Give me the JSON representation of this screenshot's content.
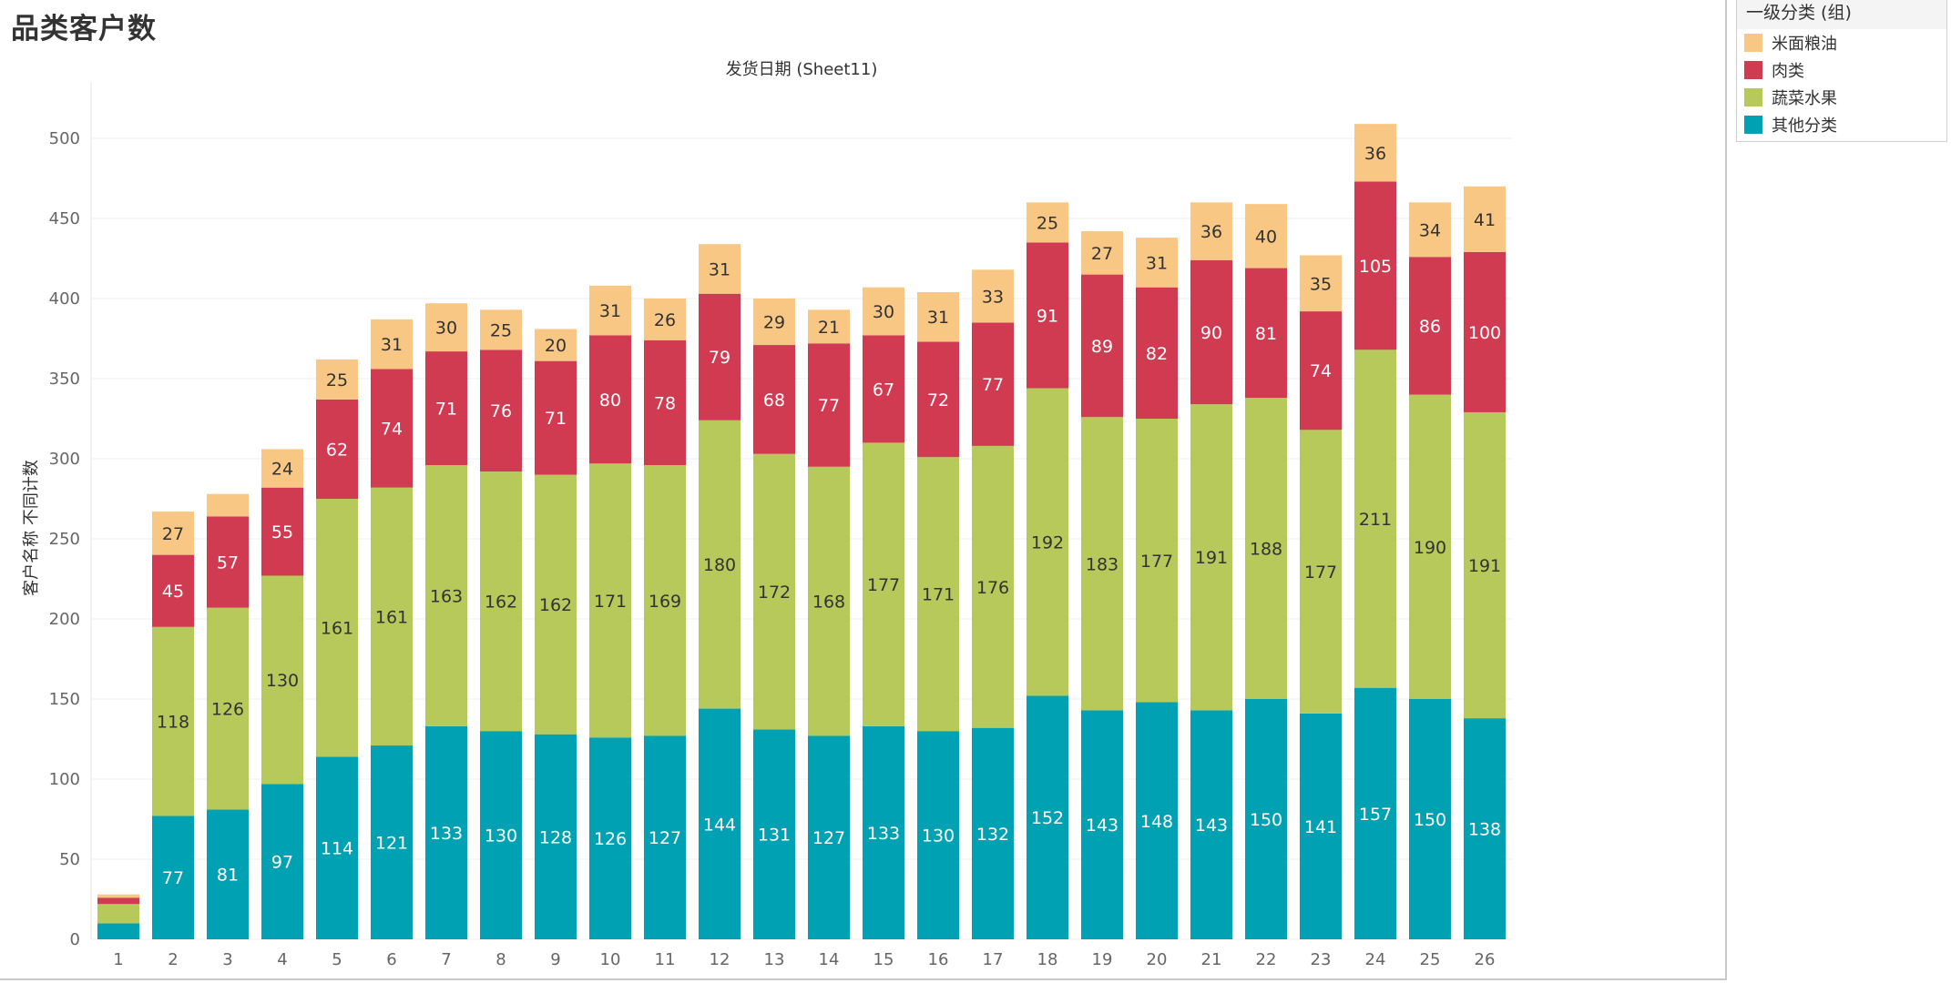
{
  "page": {
    "title": "品类客户数"
  },
  "legend": {
    "title": "一级分类 (组)",
    "items": [
      {
        "label": "米面粮油",
        "color": "#F8C784"
      },
      {
        "label": "肉类",
        "color": "#D13B52"
      },
      {
        "label": "蔬菜水果",
        "color": "#B8C95C"
      },
      {
        "label": "其他分类",
        "color": "#00A1B3"
      }
    ]
  },
  "chart_data": {
    "type": "bar",
    "stacked": true,
    "title": "发货日期 (Sheet11)",
    "xlabel": "",
    "ylabel": "客户名称 不同计数",
    "ylim": [
      0,
      520
    ],
    "yticks": [
      0,
      50,
      100,
      150,
      200,
      250,
      300,
      350,
      400,
      450,
      500
    ],
    "categories": [
      "1",
      "2",
      "3",
      "4",
      "5",
      "6",
      "7",
      "8",
      "9",
      "10",
      "11",
      "12",
      "13",
      "14",
      "15",
      "16",
      "17",
      "18",
      "19",
      "20",
      "21",
      "22",
      "23",
      "24",
      "25",
      "26"
    ],
    "series": [
      {
        "name": "其他分类",
        "color": "#00A1B3",
        "label_color": "#ffffff",
        "values": [
          10,
          77,
          81,
          97,
          114,
          121,
          133,
          130,
          128,
          126,
          127,
          144,
          131,
          127,
          133,
          130,
          132,
          152,
          143,
          148,
          143,
          150,
          141,
          157,
          150,
          138
        ],
        "labels": [
          "",
          "77",
          "81",
          "97",
          "114",
          "121",
          "133",
          "130",
          "128",
          "126",
          "127",
          "144",
          "131",
          "127",
          "133",
          "130",
          "132",
          "152",
          "143",
          "148",
          "143",
          "150",
          "141",
          "157",
          "150",
          "138"
        ]
      },
      {
        "name": "蔬菜水果",
        "color": "#B8C95C",
        "label_color": "#333333",
        "values": [
          12,
          118,
          126,
          130,
          161,
          161,
          163,
          162,
          162,
          171,
          169,
          180,
          172,
          168,
          177,
          171,
          176,
          192,
          183,
          177,
          191,
          188,
          177,
          211,
          190,
          191
        ],
        "labels": [
          "",
          "118",
          "126",
          "130",
          "161",
          "161",
          "163",
          "162",
          "162",
          "171",
          "169",
          "180",
          "172",
          "168",
          "177",
          "171",
          "176",
          "192",
          "183",
          "177",
          "191",
          "188",
          "177",
          "211",
          "190",
          "191"
        ]
      },
      {
        "name": "肉类",
        "color": "#D13B52",
        "label_color": "#ffffff",
        "values": [
          4,
          45,
          57,
          55,
          62,
          74,
          71,
          76,
          71,
          80,
          78,
          79,
          68,
          77,
          67,
          72,
          77,
          91,
          89,
          82,
          90,
          81,
          74,
          105,
          86,
          100
        ],
        "labels": [
          "",
          "45",
          "57",
          "55",
          "62",
          "74",
          "71",
          "76",
          "71",
          "80",
          "78",
          "79",
          "68",
          "77",
          "67",
          "72",
          "77",
          "91",
          "89",
          "82",
          "90",
          "81",
          "74",
          "105",
          "86",
          "100"
        ]
      },
      {
        "name": "米面粮油",
        "color": "#F8C784",
        "label_color": "#333333",
        "values": [
          2,
          27,
          14,
          24,
          25,
          31,
          30,
          25,
          20,
          31,
          26,
          31,
          29,
          21,
          30,
          31,
          33,
          25,
          27,
          31,
          36,
          40,
          35,
          36,
          34,
          41
        ],
        "labels": [
          "",
          "27",
          "",
          "24",
          "25",
          "31",
          "30",
          "25",
          "20",
          "31",
          "26",
          "31",
          "29",
          "21",
          "30",
          "31",
          "33",
          "25",
          "27",
          "31",
          "36",
          "40",
          "35",
          "36",
          "34",
          "41"
        ]
      }
    ]
  }
}
